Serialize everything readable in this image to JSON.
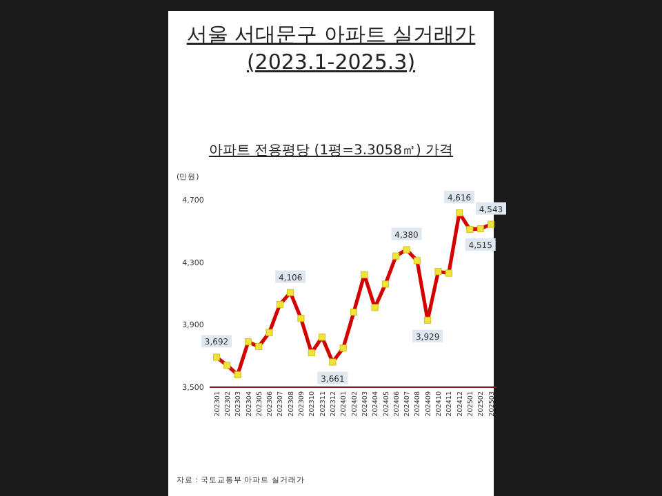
{
  "chart_data": {
    "type": "line",
    "title": "서울 서대문구 아파트 실거래가 (2023.1-2025.3)",
    "subtitle": "아파트 전용평당 (1평=3.3058㎡) 가격",
    "ylabel": "(만원)",
    "categories": [
      "202301",
      "202302",
      "202303",
      "202304",
      "202305",
      "202306",
      "202307",
      "202308",
      "202309",
      "202310",
      "202311",
      "202312",
      "202401",
      "202402",
      "202403",
      "202404",
      "202405",
      "202406",
      "202407",
      "202408",
      "202409",
      "202410",
      "202411",
      "202412",
      "202501",
      "202502",
      "202503"
    ],
    "series": [
      {
        "color": "#d40000",
        "values": [
          3692,
          3640,
          3580,
          3790,
          3760,
          3850,
          4030,
          4106,
          3940,
          3720,
          3820,
          3661,
          3750,
          3980,
          4220,
          4010,
          4160,
          4340,
          4380,
          4310,
          3929,
          4240,
          4230,
          4616,
          4510,
          4515,
          4543
        ],
        "value_labels": [
          "3,692",
          null,
          null,
          null,
          null,
          null,
          null,
          "4,106",
          null,
          null,
          null,
          "3,661",
          null,
          null,
          null,
          null,
          null,
          null,
          "4,380",
          null,
          "3,929",
          null,
          null,
          "4,616",
          null,
          "4,515",
          "4,543"
        ]
      }
    ],
    "ylim": [
      3500,
      4700
    ],
    "yticks": [
      {
        "value": 3500,
        "label": "3,500"
      },
      {
        "value": 3900,
        "label": "3,900"
      },
      {
        "value": 4300,
        "label": "4,300"
      },
      {
        "value": 4700,
        "label": "4,700"
      }
    ],
    "marker": "square",
    "line_style": "solid",
    "annotations": [
      "자료 : 국토교통부 아파트 실거래가"
    ]
  }
}
